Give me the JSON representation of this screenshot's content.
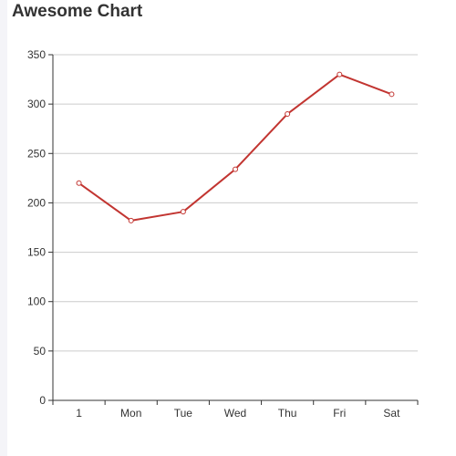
{
  "chart_data": {
    "type": "line",
    "title": "Awesome Chart",
    "categories": [
      "1",
      "Mon",
      "Tue",
      "Wed",
      "Thu",
      "Fri",
      "Sat"
    ],
    "series": [
      {
        "values": [
          220,
          182,
          191,
          234,
          290,
          330,
          310
        ]
      }
    ],
    "xlabel": "",
    "ylabel": "",
    "ylim": [
      0,
      350
    ],
    "yticks": [
      0,
      50,
      100,
      150,
      200,
      250,
      300,
      350
    ],
    "grid": true,
    "legend": "none",
    "line_color": "#c23531"
  }
}
